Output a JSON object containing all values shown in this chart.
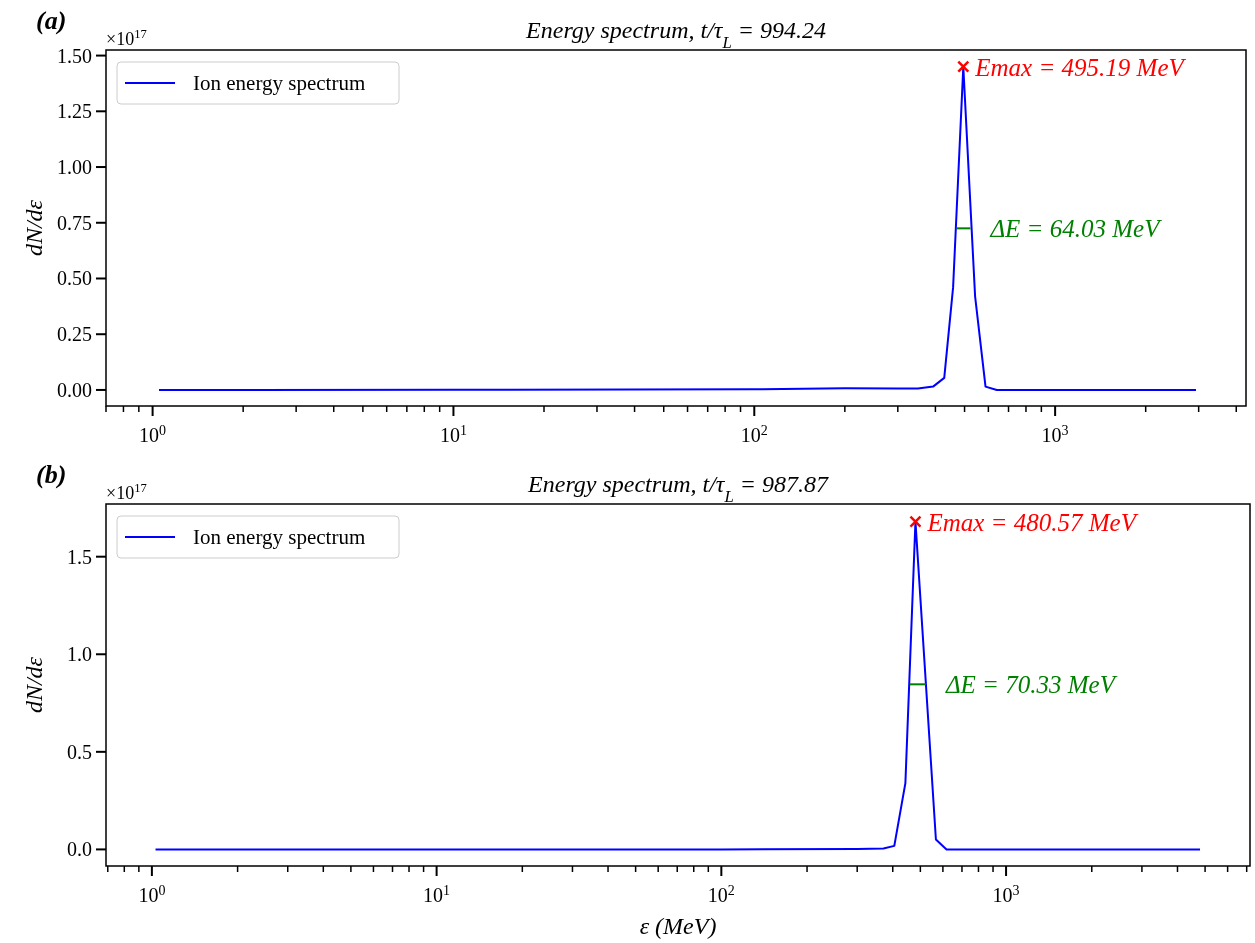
{
  "chart_data": [
    {
      "type": "line",
      "title": "Energy spectrum, t/τ$_{L}$ = 994.24",
      "ylabel": "dN/dε",
      "legend": "top left",
      "log": "x",
      "annotations": [
        "(a)",
        "×10$^{17}$",
        {
          "text": "Emax = 495.19 MeV",
          "x": 495.19,
          "y": 1.45
        },
        {
          "text": "ΔE = 64.03 MeV",
          "x": 523,
          "y": 0.725
        }
      ],
      "xlim": [
        0.7,
        4310
      ],
      "ylim": [
        -0.072,
        1.525
      ],
      "xticks": [
        {
          "value": 0.7,
          "label": null
        },
        {
          "value": 0.8,
          "label": null
        },
        {
          "value": 0.9,
          "label": null
        },
        {
          "value": 1,
          "label": "10$^{0}$"
        },
        {
          "value": 2,
          "label": null
        },
        {
          "value": 3,
          "label": null
        },
        {
          "value": 4,
          "label": null
        },
        {
          "value": 5,
          "label": null
        },
        {
          "value": 6,
          "label": null
        },
        {
          "value": 7,
          "label": null
        },
        {
          "value": 8,
          "label": null
        },
        {
          "value": 9,
          "label": null
        },
        {
          "value": 10,
          "label": "10$^{1}$"
        },
        {
          "value": 20,
          "label": null
        },
        {
          "value": 30,
          "label": null
        },
        {
          "value": 40,
          "label": null
        },
        {
          "value": 50,
          "label": null
        },
        {
          "value": 60,
          "label": null
        },
        {
          "value": 70,
          "label": null
        },
        {
          "value": 80,
          "label": null
        },
        {
          "value": 90,
          "label": null
        },
        {
          "value": 100,
          "label": "10$^{2}$"
        },
        {
          "value": 200,
          "label": null
        },
        {
          "value": 300,
          "label": null
        },
        {
          "value": 400,
          "label": null
        },
        {
          "value": 500,
          "label": null
        },
        {
          "value": 600,
          "label": null
        },
        {
          "value": 700,
          "label": null
        },
        {
          "value": 800,
          "label": null
        },
        {
          "value": 900,
          "label": null
        },
        {
          "value": 1000,
          "label": "10$^{3}$"
        },
        {
          "value": 2000,
          "label": null
        },
        {
          "value": 3000,
          "label": null
        },
        {
          "value": 4000,
          "label": null
        }
      ],
      "yticks": [
        {
          "value": 0,
          "label": "0.00"
        },
        {
          "value": 0.25,
          "label": "0.25"
        },
        {
          "value": 0.5,
          "label": "0.50"
        },
        {
          "value": 0.75,
          "label": "0.75"
        },
        {
          "value": 1,
          "label": "1.00"
        },
        {
          "value": 1.25,
          "label": "1.25"
        },
        {
          "value": 1.5,
          "label": "1.50"
        }
      ],
      "series": [
        {
          "name": "Ion energy spectrum",
          "color": "#0000ff",
          "x": [
            1.05,
            10,
            100,
            200,
            300,
            350,
            393,
            428,
            458,
            495.19,
            542,
            587,
            640,
            1000,
            2940
          ],
          "values": [
            0,
            0.001,
            0.003,
            0.008,
            0.007,
            0.006,
            0.015,
            0.054,
            0.46,
            1.45,
            0.42,
            0.015,
            0,
            0,
            0
          ]
        },
        {
          "color": "#008000",
          "type": "line",
          "x": [
            471,
            523
          ],
          "values": [
            0.725,
            0.725
          ]
        },
        {
          "color": "#ff0000",
          "type": "scatter",
          "marker": "cross",
          "x": [
            495.19
          ],
          "values": [
            1.45
          ]
        }
      ]
    },
    {
      "type": "line",
      "title": "Energy spectrum, t/τ$_{L}$ = 987.87",
      "xlabel": "ε (MeV)",
      "ylabel": "dN/dε",
      "legend": "top left",
      "log": "x",
      "annotations": [
        "(b)",
        "×10$^{17}$",
        {
          "text": "Emax = 480.57 MeV",
          "x": 480.57,
          "y": 1.68
        },
        {
          "text": "ΔE = 70.33 MeV",
          "x": 523,
          "y": 0.846
        }
      ],
      "xlim": [
        0.69,
        7190
      ],
      "ylim": [
        -0.085,
        1.77
      ],
      "xticks": [
        {
          "value": 0.7,
          "label": null
        },
        {
          "value": 0.8,
          "label": null
        },
        {
          "value": 0.9,
          "label": null
        },
        {
          "value": 1,
          "label": "10$^{0}$"
        },
        {
          "value": 2,
          "label": null
        },
        {
          "value": 3,
          "label": null
        },
        {
          "value": 4,
          "label": null
        },
        {
          "value": 5,
          "label": null
        },
        {
          "value": 6,
          "label": null
        },
        {
          "value": 7,
          "label": null
        },
        {
          "value": 8,
          "label": null
        },
        {
          "value": 9,
          "label": null
        },
        {
          "value": 10,
          "label": "10$^{1}$"
        },
        {
          "value": 20,
          "label": null
        },
        {
          "value": 30,
          "label": null
        },
        {
          "value": 40,
          "label": null
        },
        {
          "value": 50,
          "label": null
        },
        {
          "value": 60,
          "label": null
        },
        {
          "value": 70,
          "label": null
        },
        {
          "value": 80,
          "label": null
        },
        {
          "value": 90,
          "label": null
        },
        {
          "value": 100,
          "label": "10$^{2}$"
        },
        {
          "value": 200,
          "label": null
        },
        {
          "value": 300,
          "label": null
        },
        {
          "value": 400,
          "label": null
        },
        {
          "value": 500,
          "label": null
        },
        {
          "value": 600,
          "label": null
        },
        {
          "value": 700,
          "label": null
        },
        {
          "value": 800,
          "label": null
        },
        {
          "value": 900,
          "label": null
        },
        {
          "value": 1000,
          "label": "10$^{3}$"
        },
        {
          "value": 2000,
          "label": null
        },
        {
          "value": 3000,
          "label": null
        },
        {
          "value": 4000,
          "label": null
        },
        {
          "value": 5000,
          "label": null
        },
        {
          "value": 6000,
          "label": null
        },
        {
          "value": 7000,
          "label": null
        }
      ],
      "yticks": [
        {
          "value": 0,
          "label": "0.0"
        },
        {
          "value": 0.5,
          "label": "0.5"
        },
        {
          "value": 1,
          "label": "1.0"
        },
        {
          "value": 1.5,
          "label": "1.5"
        }
      ],
      "series": [
        {
          "name": "Ion energy spectrum",
          "color": "#0000ff",
          "x": [
            1.03,
            10,
            100,
            300,
            371,
            405,
            443,
            480.57,
            567,
            618,
            1000,
            4800
          ],
          "values": [
            0,
            0,
            0,
            0.002,
            0.005,
            0.018,
            0.34,
            1.68,
            0.051,
            0,
            0,
            0
          ]
        },
        {
          "color": "#008000",
          "type": "line",
          "x": [
            459,
            523
          ],
          "values": [
            0.846,
            0.846
          ]
        },
        {
          "color": "#ff0000",
          "type": "scatter",
          "marker": "cross",
          "x": [
            480.57
          ],
          "values": [
            1.68
          ]
        }
      ]
    }
  ]
}
